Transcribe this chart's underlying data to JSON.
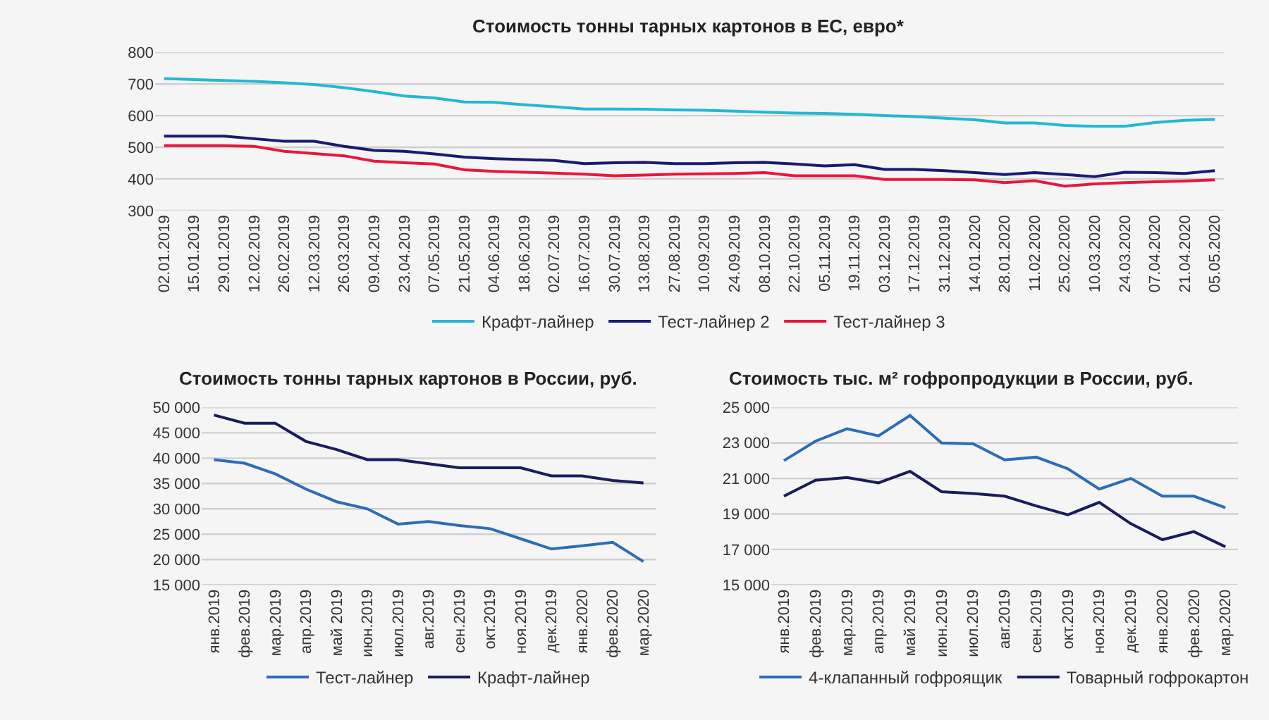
{
  "chart_data": [
    {
      "type": "line",
      "title": "Стоимость тонны тарных картонов в ЕС, евро*",
      "categories": [
        "02.01.2019",
        "15.01.2019",
        "29.01.2019",
        "12.02.2019",
        "26.02.2019",
        "12.03.2019",
        "26.03.2019",
        "09.04.2019",
        "23.04.2019",
        "07.05.2019",
        "21.05.2019",
        "04.06.2019",
        "18.06.2019",
        "02.07.2019",
        "16.07.2019",
        "30.07.2019",
        "13.08.2019",
        "27.08.2019",
        "10.09.2019",
        "24.09.2019",
        "08.10.2019",
        "22.10.2019",
        "05.11.2019",
        "19.11.2019",
        "03.12.2019",
        "17.12.2019",
        "31.12.2019",
        "14.01.2020",
        "28.01.2020",
        "11.02.2020",
        "25.02.2020",
        "10.03.2020",
        "24.03.2020",
        "07.04.2020",
        "21.04.2020",
        "05.05.2020"
      ],
      "series": [
        {
          "name": "Крафт-лайнер",
          "color": "#22b8d4",
          "values": [
            717,
            714,
            711,
            708,
            704,
            698,
            688,
            676,
            662,
            656,
            643,
            642,
            634,
            628,
            621,
            621,
            620,
            618,
            617,
            614,
            611,
            608,
            607,
            604,
            600,
            597,
            592,
            587,
            577,
            577,
            569,
            566,
            566,
            578,
            585,
            588
          ]
        },
        {
          "name": "Тест-лайнер 2",
          "color": "#1a1a72",
          "values": [
            535,
            535,
            535,
            527,
            519,
            519,
            503,
            490,
            487,
            479,
            469,
            464,
            461,
            458,
            448,
            451,
            452,
            448,
            448,
            451,
            452,
            447,
            441,
            445,
            430,
            430,
            426,
            420,
            414,
            420,
            414,
            407,
            421,
            420,
            417,
            426
          ]
        },
        {
          "name": "Тест-лайнер 3",
          "color": "#e8173f",
          "values": [
            505,
            505,
            505,
            503,
            487,
            480,
            473,
            456,
            451,
            447,
            429,
            424,
            421,
            418,
            415,
            410,
            412,
            415,
            416,
            417,
            420,
            410,
            410,
            410,
            398,
            398,
            398,
            397,
            388,
            394,
            377,
            384,
            388,
            391,
            393,
            397
          ]
        }
      ],
      "ylim": [
        300,
        800
      ],
      "yticks": [
        300,
        400,
        500,
        600,
        700,
        800
      ],
      "grid": "y",
      "legend": "bottom"
    },
    {
      "type": "line",
      "title": "Стоимость тонны тарных картонов в России, руб.",
      "categories": [
        "янв.2019",
        "фев.2019",
        "мар.2019",
        "апр.2019",
        "май 2019",
        "июн.2019",
        "июл.2019",
        "авг.2019",
        "сен.2019",
        "окт.2019",
        "ноя.2019",
        "дек.2019",
        "янв.2020",
        "фев.2020",
        "мар.2020"
      ],
      "series": [
        {
          "name": "Тест-лайнер",
          "color": "#2e6db4",
          "values": [
            39700,
            39000,
            36900,
            33900,
            31400,
            30000,
            27000,
            27500,
            26700,
            26100,
            24100,
            22100,
            22700,
            23400,
            19600
          ]
        },
        {
          "name": "Крафт-лайнер",
          "color": "#1b1c5a",
          "values": [
            48500,
            46900,
            46900,
            43300,
            41700,
            39700,
            39700,
            38900,
            38100,
            38100,
            38100,
            36500,
            36500,
            35600,
            35100
          ]
        }
      ],
      "ylim": [
        15000,
        50000
      ],
      "yticks": [
        {
          "value": 15000,
          "label": "15 000"
        },
        {
          "value": 20000,
          "label": "20 000"
        },
        {
          "value": 25000,
          "label": "25 000"
        },
        {
          "value": 30000,
          "label": "30 000"
        },
        {
          "value": 35000,
          "label": "35 000"
        },
        {
          "value": 40000,
          "label": "40 000"
        },
        {
          "value": 45000,
          "label": "45 000"
        },
        {
          "value": 50000,
          "label": "50 000"
        }
      ],
      "grid": "y",
      "legend": "bottom"
    },
    {
      "type": "line",
      "title": "Стоимость тыс. м² гофропродукции в России, руб.",
      "categories": [
        "янв.2019",
        "фев.2019",
        "мар.2019",
        "апр.2019",
        "май 2019",
        "июн.2019",
        "июл.2019",
        "авг.2019",
        "сен.2019",
        "окт.2019",
        "ноя.2019",
        "дек.2019",
        "янв.2020",
        "фев.2020",
        "мар.2020"
      ],
      "series": [
        {
          "name": "4-клапанный гофроящик",
          "color": "#2e6db4",
          "values": [
            22000,
            23100,
            23800,
            23400,
            24550,
            23000,
            22950,
            22050,
            22200,
            21550,
            20400,
            21000,
            20000,
            20000,
            19350
          ]
        },
        {
          "name": "Товарный гофрокартон",
          "color": "#1b1c5a",
          "values": [
            20000,
            20900,
            21050,
            20750,
            21400,
            20250,
            20150,
            20000,
            19450,
            18950,
            19650,
            18450,
            17550,
            18000,
            17150
          ]
        }
      ],
      "ylim": [
        15000,
        25000
      ],
      "yticks": [
        {
          "value": 15000,
          "label": "15 000"
        },
        {
          "value": 17000,
          "label": "17 000"
        },
        {
          "value": 19000,
          "label": "19 000"
        },
        {
          "value": 21000,
          "label": "21 000"
        },
        {
          "value": 23000,
          "label": "23 000"
        },
        {
          "value": 25000,
          "label": "25 000"
        }
      ],
      "grid": "y",
      "legend": "bottom"
    }
  ]
}
